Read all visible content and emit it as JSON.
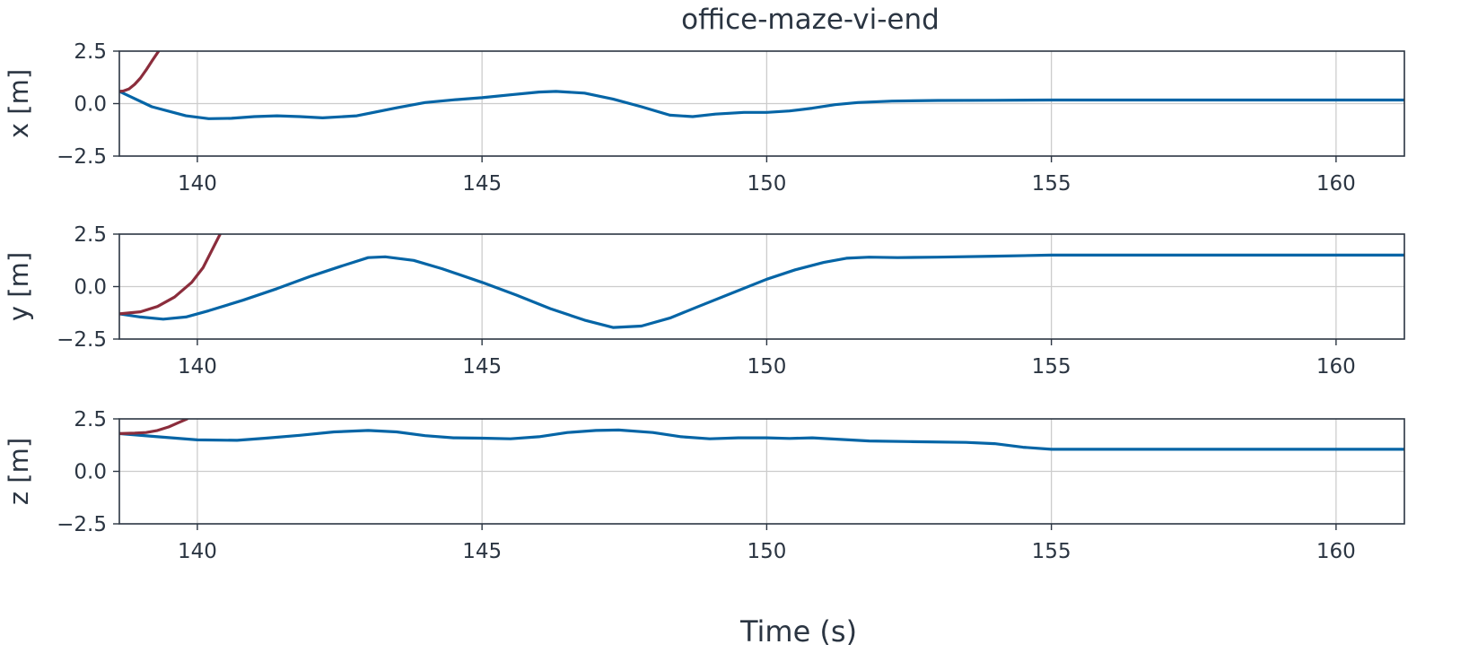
{
  "chart_data": {
    "type": "line",
    "title": "office-maze-vi-end",
    "xlabel": "Time (s)",
    "xlim": [
      138.63,
      161.2
    ],
    "xticks": [
      140,
      145,
      150,
      155,
      160
    ],
    "xtick_labels": [
      "140",
      "145",
      "150",
      "155",
      "160"
    ],
    "grid": true,
    "colors": {
      "series_a": "#0565a6",
      "series_b": "#8b2d3c",
      "axes": "#2b3542",
      "grid": "#cccccc"
    },
    "panels": [
      {
        "ylabel": "x [m]",
        "ylim": [
          -2.5,
          2.5
        ],
        "yticks": [
          -2.5,
          0.0,
          2.5
        ],
        "ytick_labels": [
          "−2.5",
          "0.0",
          "2.5"
        ],
        "series": [
          {
            "color": "#0565a6",
            "x": [
              138.63,
              139.2,
              139.8,
              140.2,
              140.6,
              141.0,
              141.4,
              141.8,
              142.2,
              142.8,
              143.5,
              144.0,
              144.5,
              145.0,
              145.5,
              146.0,
              146.3,
              146.8,
              147.3,
              147.8,
              148.3,
              148.7,
              149.1,
              149.6,
              150.0,
              150.4,
              150.8,
              151.2,
              151.6,
              152.2,
              153.0,
              154.0,
              155.0,
              156.0,
              158.0,
              161.2
            ],
            "y": [
              0.58,
              -0.15,
              -0.58,
              -0.72,
              -0.7,
              -0.62,
              -0.58,
              -0.62,
              -0.68,
              -0.58,
              -0.2,
              0.05,
              0.18,
              0.28,
              0.42,
              0.55,
              0.58,
              0.5,
              0.22,
              -0.15,
              -0.55,
              -0.62,
              -0.5,
              -0.42,
              -0.42,
              -0.35,
              -0.22,
              -0.05,
              0.05,
              0.12,
              0.15,
              0.16,
              0.17,
              0.17,
              0.17,
              0.17
            ]
          },
          {
            "color": "#8b2d3c",
            "x": [
              138.63,
              138.7,
              138.8,
              138.9,
              139.0,
              139.1,
              139.2,
              139.32
            ],
            "y": [
              0.58,
              0.6,
              0.7,
              0.92,
              1.22,
              1.6,
              2.02,
              2.5
            ]
          }
        ]
      },
      {
        "ylabel": "y [m]",
        "ylim": [
          -2.5,
          2.5
        ],
        "yticks": [
          -2.5,
          0.0,
          2.5
        ],
        "ytick_labels": [
          "−2.5",
          "0.0",
          "2.5"
        ],
        "series": [
          {
            "color": "#0565a6",
            "x": [
              138.63,
              139.0,
              139.4,
              139.8,
              140.2,
              140.8,
              141.4,
              142.0,
              142.5,
              143.0,
              143.3,
              143.8,
              144.3,
              145.0,
              145.6,
              146.2,
              146.8,
              147.3,
              147.8,
              148.3,
              148.8,
              149.4,
              150.0,
              150.5,
              151.0,
              151.4,
              151.8,
              152.3,
              153.0,
              154.0,
              155.0,
              156.0,
              158.0,
              161.2
            ],
            "y": [
              -1.3,
              -1.45,
              -1.55,
              -1.45,
              -1.15,
              -0.65,
              -0.1,
              0.5,
              0.95,
              1.38,
              1.42,
              1.25,
              0.85,
              0.2,
              -0.4,
              -1.05,
              -1.6,
              -1.95,
              -1.88,
              -1.5,
              -0.95,
              -0.3,
              0.35,
              0.8,
              1.15,
              1.35,
              1.4,
              1.38,
              1.4,
              1.45,
              1.5,
              1.5,
              1.5,
              1.5
            ]
          },
          {
            "color": "#8b2d3c",
            "x": [
              138.63,
              139.0,
              139.3,
              139.6,
              139.9,
              140.1,
              140.4
            ],
            "y": [
              -1.3,
              -1.2,
              -0.95,
              -0.5,
              0.2,
              0.9,
              2.5
            ]
          }
        ]
      },
      {
        "ylabel": "z [m]",
        "ylim": [
          -2.5,
          2.5
        ],
        "yticks": [
          -2.5,
          0.0,
          2.5
        ],
        "ytick_labels": [
          "−2.5",
          "0.0",
          "2.5"
        ],
        "series": [
          {
            "color": "#0565a6",
            "x": [
              138.63,
              139.3,
              140.0,
              140.7,
              141.2,
              141.8,
              142.4,
              143.0,
              143.5,
              144.0,
              144.5,
              145.0,
              145.5,
              146.0,
              146.5,
              147.0,
              147.4,
              148.0,
              148.5,
              149.0,
              149.5,
              150.0,
              150.4,
              150.8,
              151.3,
              151.8,
              152.5,
              153.5,
              154.0,
              154.5,
              155.0,
              156.0,
              158.0,
              161.2
            ],
            "y": [
              1.8,
              1.65,
              1.5,
              1.48,
              1.58,
              1.72,
              1.88,
              1.95,
              1.88,
              1.7,
              1.6,
              1.58,
              1.55,
              1.65,
              1.85,
              1.95,
              1.97,
              1.85,
              1.65,
              1.55,
              1.6,
              1.6,
              1.57,
              1.6,
              1.52,
              1.45,
              1.42,
              1.38,
              1.32,
              1.15,
              1.05,
              1.05,
              1.05,
              1.05
            ]
          },
          {
            "color": "#8b2d3c",
            "x": [
              138.63,
              138.9,
              139.1,
              139.3,
              139.5,
              139.65,
              139.82
            ],
            "y": [
              1.8,
              1.82,
              1.85,
              1.95,
              2.12,
              2.3,
              2.5
            ]
          }
        ]
      }
    ]
  }
}
